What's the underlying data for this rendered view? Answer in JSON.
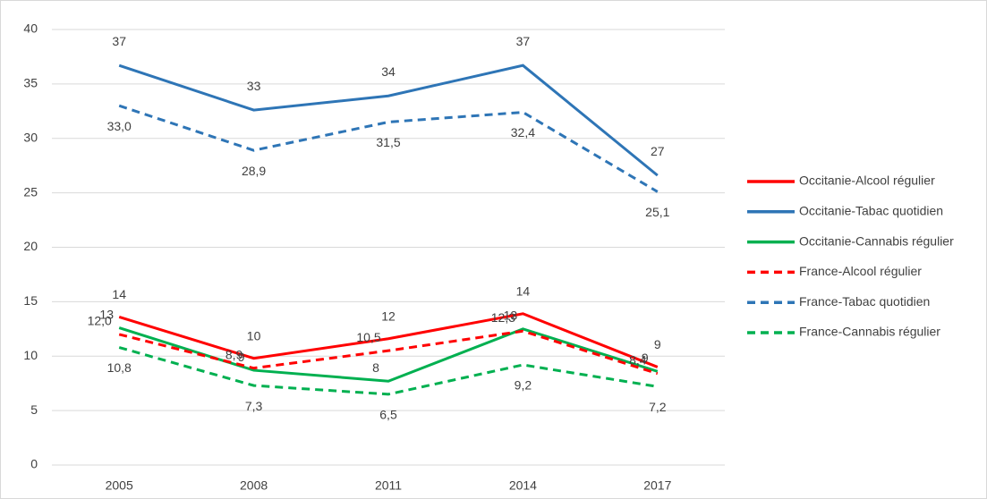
{
  "chart_data": {
    "type": "line",
    "categories": [
      "2005",
      "2008",
      "2011",
      "2014",
      "2017"
    ],
    "ylim": [
      0,
      40
    ],
    "yticks": [
      0,
      5,
      10,
      15,
      20,
      25,
      30,
      35,
      40
    ],
    "grid": true,
    "legend": "right",
    "series": [
      {
        "name": "Occitanie-Alcool régulier",
        "color": "#ff0000",
        "dashed": false,
        "values": [
          13.6,
          9.8,
          11.6,
          13.9,
          9.0
        ],
        "value_labels": [
          "14",
          "10",
          "12",
          "14",
          "9"
        ]
      },
      {
        "name": "Occitanie-Tabac quotidien",
        "color": "#2e75b6",
        "dashed": false,
        "values": [
          36.7,
          32.6,
          33.9,
          36.7,
          26.6
        ],
        "value_labels": [
          "37",
          "33",
          "34",
          "37",
          "27"
        ]
      },
      {
        "name": "Occitanie-Cannabis régulier",
        "color": "#00b050",
        "dashed": false,
        "values": [
          12.6,
          8.7,
          7.7,
          12.5,
          8.6
        ],
        "value_labels": [
          "13",
          "9",
          "8",
          "13",
          "9"
        ]
      },
      {
        "name": "France-Alcool régulier",
        "color": "#ff0000",
        "dashed": true,
        "values": [
          12.0,
          8.9,
          10.5,
          12.3,
          8.4
        ],
        "value_labels": [
          "12,0",
          "8,9",
          "10,5",
          "12,3",
          "8,4"
        ]
      },
      {
        "name": "France-Tabac quotidien",
        "color": "#2e75b6",
        "dashed": true,
        "values": [
          33.0,
          28.9,
          31.5,
          32.4,
          25.1
        ],
        "value_labels": [
          "33,0",
          "28,9",
          "31,5",
          "32,4",
          "25,1"
        ]
      },
      {
        "name": "France-Cannabis régulier",
        "color": "#00b050",
        "dashed": true,
        "values": [
          10.8,
          7.3,
          6.5,
          9.2,
          7.2
        ],
        "value_labels": [
          "10,8",
          "7,3",
          "6,5",
          "9,2",
          "7,2"
        ]
      }
    ]
  }
}
